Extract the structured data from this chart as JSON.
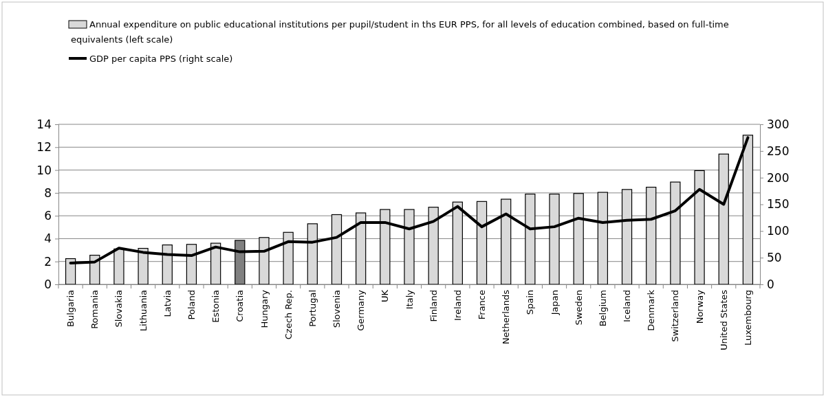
{
  "chart_data": {
    "type": "bar",
    "categories": [
      "Bulgaria",
      "Romania",
      "Slovakia",
      "Lithuania",
      "Latvia",
      "Poland",
      "Estonia",
      "Croatia",
      "Hungary",
      "Czech Rep.",
      "Portugal",
      "Slovenia",
      "Germany",
      "UK",
      "Italy",
      "Finland",
      "Ireland",
      "France",
      "Netherlands",
      "Spain",
      "Japan",
      "Sweden",
      "Belgium",
      "Iceland",
      "Denmark",
      "Switzerland",
      "Norway",
      "United States",
      "Luxembourg"
    ],
    "series": [
      {
        "name": "Annual expenditure on public educational institutions per pupil/student in ths EUR PPS, for all levels of education combined, based on full-time equivalents (left scale)",
        "color": "#d9d9d9",
        "colors": [
          "#d9d9d9",
          "#d9d9d9",
          "#d9d9d9",
          "#d9d9d9",
          "#d9d9d9",
          "#d9d9d9",
          "#d9d9d9",
          "#808080",
          "#d9d9d9",
          "#d9d9d9",
          "#d9d9d9",
          "#d9d9d9",
          "#d9d9d9",
          "#d9d9d9",
          "#d9d9d9",
          "#d9d9d9",
          "#d9d9d9",
          "#d9d9d9",
          "#d9d9d9",
          "#d9d9d9",
          "#d9d9d9",
          "#d9d9d9",
          "#d9d9d9",
          "#d9d9d9",
          "#d9d9d9",
          "#d9d9d9",
          "#d9d9d9",
          "#d9d9d9",
          "#d9d9d9"
        ],
        "values": [
          2.25,
          2.55,
          3.1,
          3.15,
          3.45,
          3.5,
          3.6,
          3.85,
          4.1,
          4.55,
          5.3,
          6.1,
          6.25,
          6.55,
          6.55,
          6.75,
          7.2,
          7.25,
          7.45,
          7.9,
          7.9,
          7.95,
          8.05,
          8.3,
          8.5,
          8.95,
          9.95,
          11.4,
          13.05
        ]
      },
      {
        "name": "GDP per capita PPS (right scale)",
        "type": "line",
        "axis": "y2",
        "color": "#000000",
        "values": [
          40,
          42,
          68,
          60,
          56,
          54,
          70,
          61,
          62,
          80,
          79,
          88,
          116,
          116,
          104,
          118,
          146,
          108,
          132,
          104,
          108,
          124,
          116,
          120,
          122,
          138,
          178,
          150,
          275
        ]
      }
    ],
    "ylim": [
      0,
      14
    ],
    "yticks": [
      0,
      2,
      4,
      6,
      8,
      10,
      12,
      14
    ],
    "y2lim": [
      0,
      300
    ],
    "y2ticks": [
      0,
      50,
      100,
      150,
      200,
      250,
      300
    ],
    "grid": "y",
    "legend": "top left"
  }
}
